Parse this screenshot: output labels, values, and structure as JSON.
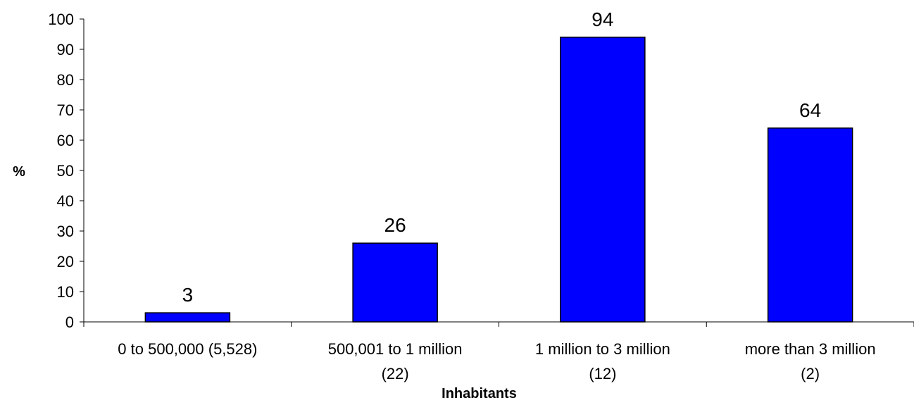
{
  "chart_data": {
    "type": "bar",
    "title": "",
    "xlabel": "Inhabitants",
    "ylabel": "%",
    "ylim": [
      0,
      100
    ],
    "yticks": [
      0,
      10,
      20,
      30,
      40,
      50,
      60,
      70,
      80,
      90,
      100
    ],
    "grid": false,
    "legend": "none",
    "categories": [
      [
        "0 to 500,000 (5,528)"
      ],
      [
        "500,001 to 1 million",
        "(22)"
      ],
      [
        "1 million to 3 million",
        "(12)"
      ],
      [
        "more than 3 million",
        "(2)"
      ]
    ],
    "values": [
      3,
      26,
      94,
      64
    ],
    "data_labels": [
      "3",
      "26",
      "94",
      "64"
    ],
    "colors": {
      "bar_fill": "#0000FF",
      "bar_stroke": "#000000",
      "axis": "#000000"
    }
  }
}
